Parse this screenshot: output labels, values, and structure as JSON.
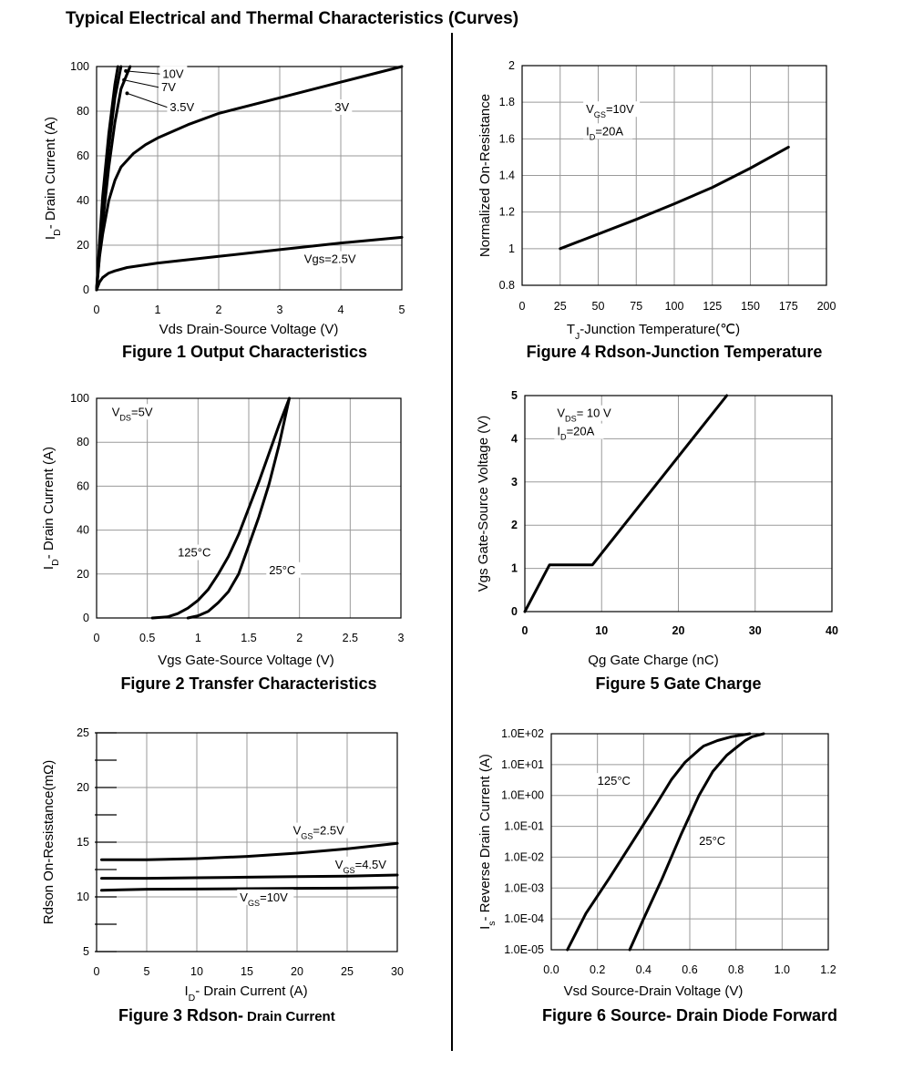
{
  "page": {
    "title": "Typical Electrical and Thermal Characteristics (Curves)"
  },
  "chart_data": [
    {
      "id": "fig1",
      "type": "line",
      "caption": "Figure 1 Output Characteristics",
      "xlabel": "Vds Drain-Source Voltage (V)",
      "ylabel": {
        "main": "I",
        "sub": "D",
        "rest": "- Drain Current (A)"
      },
      "xlim": [
        0,
        5
      ],
      "ylim": [
        0,
        100
      ],
      "xticks": [
        0,
        1,
        2,
        3,
        4,
        5
      ],
      "yticks": [
        0,
        20,
        40,
        60,
        80,
        100
      ],
      "xtick_labels": [
        "0",
        "1",
        "2",
        "3",
        "4",
        "5"
      ],
      "ytick_labels": [
        "0",
        "20",
        "40",
        "60",
        "80",
        "100"
      ],
      "grid": true,
      "series": [
        {
          "name": "10V",
          "x": [
            0,
            0.05,
            0.1,
            0.2,
            0.3,
            0.35
          ],
          "y": [
            0,
            22,
            42,
            70,
            92,
            100
          ]
        },
        {
          "name": "7V",
          "x": [
            0,
            0.05,
            0.1,
            0.2,
            0.3,
            0.4
          ],
          "y": [
            0,
            20,
            38,
            64,
            86,
            100
          ]
        },
        {
          "name": "3.5V",
          "x": [
            0,
            0.05,
            0.1,
            0.2,
            0.3,
            0.4,
            0.55
          ],
          "y": [
            0,
            16,
            30,
            55,
            75,
            90,
            100
          ]
        },
        {
          "name": "3V",
          "x": [
            0,
            0.05,
            0.1,
            0.2,
            0.3,
            0.4,
            0.6,
            0.8,
            1.0,
            1.5,
            2.0,
            3.0,
            4.0,
            5.0
          ],
          "y": [
            0,
            15,
            25,
            40,
            49,
            55,
            61,
            65,
            68,
            74,
            79,
            86,
            93,
            100
          ]
        },
        {
          "name": "Vgs=2.5V",
          "x": [
            0,
            0.05,
            0.1,
            0.2,
            0.3,
            0.5,
            1.0,
            2.0,
            3.0,
            4.0,
            5.0
          ],
          "y": [
            0,
            3.5,
            5.5,
            7.5,
            8.5,
            10,
            12,
            15,
            18,
            21,
            23.5
          ]
        }
      ],
      "annotations": [
        {
          "text": "10V",
          "x": 1.08,
          "y": 95,
          "arrow": [
            0.48,
            98
          ]
        },
        {
          "text": "7V",
          "x": 1.06,
          "y": 89,
          "arrow": [
            0.45,
            94
          ]
        },
        {
          "text": "3.5V",
          "x": 1.2,
          "y": 80,
          "arrow": [
            0.5,
            88
          ]
        },
        {
          "text": "3V",
          "x": 3.9,
          "y": 80
        },
        {
          "text": "Vgs=2.5V",
          "x": 3.4,
          "y": 12
        }
      ]
    },
    {
      "id": "fig2",
      "type": "line",
      "caption": "Figure 2 Transfer Characteristics",
      "xlabel": "Vgs Gate-Source Voltage (V)",
      "ylabel": {
        "main": "I",
        "sub": "D",
        "rest": "- Drain Current (A)"
      },
      "xlim": [
        0,
        3
      ],
      "ylim": [
        0,
        100
      ],
      "xticks": [
        0,
        0.5,
        1,
        1.5,
        2,
        2.5,
        3
      ],
      "yticks": [
        0,
        20,
        40,
        60,
        80,
        100
      ],
      "xtick_labels": [
        "0",
        "0.5",
        "1",
        "1.5",
        "2",
        "2.5",
        "3"
      ],
      "ytick_labels": [
        "0",
        "20",
        "40",
        "60",
        "80",
        "100"
      ],
      "grid": true,
      "series": [
        {
          "name": "125°C",
          "x": [
            0.55,
            0.7,
            0.8,
            0.9,
            1.0,
            1.1,
            1.2,
            1.3,
            1.4,
            1.5,
            1.6,
            1.7,
            1.8,
            1.9
          ],
          "y": [
            0,
            0.5,
            2,
            4.5,
            8,
            13,
            20,
            28,
            38,
            50,
            62,
            75,
            88,
            100
          ]
        },
        {
          "name": "25°C",
          "x": [
            0.9,
            1.0,
            1.1,
            1.2,
            1.3,
            1.4,
            1.5,
            1.6,
            1.7,
            1.8,
            1.9
          ],
          "y": [
            0,
            1,
            3,
            7,
            12,
            20,
            33,
            46,
            61,
            79,
            100
          ]
        }
      ],
      "annotations": [
        {
          "text": "V",
          "sub": "DS",
          "rest": "=5V",
          "x": 0.15,
          "y": 92
        },
        {
          "text": "125°C",
          "x": 0.8,
          "y": 28
        },
        {
          "text": "25°C",
          "x": 1.7,
          "y": 20
        }
      ]
    },
    {
      "id": "fig3",
      "type": "line",
      "caption": "Figure 3 Rdson-",
      "caption_tail": "Drain Current",
      "xlabel": {
        "main": "I",
        "sub": "D",
        "rest": "- Drain Current (A)"
      },
      "ylabel": "Rdson On-Resistance(mΩ)",
      "xlim": [
        0,
        30
      ],
      "ylim": [
        5,
        25
      ],
      "xticks": [
        0,
        5,
        10,
        15,
        20,
        25,
        30
      ],
      "yticks": [
        5,
        10,
        15,
        20,
        25
      ],
      "xtick_labels": [
        "0",
        "5",
        "10",
        "15",
        "20",
        "25",
        "30"
      ],
      "ytick_labels": [
        "5",
        "10",
        "15",
        "20",
        "25"
      ],
      "grid": true,
      "series": [
        {
          "name": "VGS=2.5V",
          "x": [
            0.5,
            5,
            10,
            15,
            20,
            25,
            30
          ],
          "y": [
            13.4,
            13.4,
            13.5,
            13.7,
            14.0,
            14.4,
            14.9
          ]
        },
        {
          "name": "VGS=4.5V",
          "x": [
            0.5,
            5,
            10,
            15,
            20,
            25,
            30
          ],
          "y": [
            11.7,
            11.7,
            11.75,
            11.8,
            11.85,
            11.9,
            12.0
          ]
        },
        {
          "name": "VGS=10V",
          "x": [
            0.5,
            5,
            10,
            15,
            20,
            25,
            30
          ],
          "y": [
            10.6,
            10.7,
            10.72,
            10.75,
            10.78,
            10.8,
            10.85
          ]
        }
      ],
      "annotations": [
        {
          "text": "V",
          "sub": "GS",
          "rest": "=2.5V",
          "x": 19.6,
          "y": 15.7
        },
        {
          "text": "V",
          "sub": "GS",
          "rest": "=4.5V",
          "x": 23.8,
          "y": 12.6
        },
        {
          "text": "V",
          "sub": "GS",
          "rest": "=10V",
          "x": 14.3,
          "y": 9.6
        }
      ]
    },
    {
      "id": "fig4",
      "type": "line",
      "caption": "Figure 4 Rdson-Junction Temperature",
      "xlabel": {
        "main": "T",
        "sub": "J",
        "rest": "-Junction Temperature(℃)"
      },
      "ylabel": "Normalized On-Resistance",
      "xlim": [
        0,
        200
      ],
      "ylim": [
        0.8,
        2
      ],
      "xticks": [
        0,
        25,
        50,
        75,
        100,
        125,
        150,
        175,
        200
      ],
      "yticks": [
        0.8,
        1,
        1.2,
        1.4,
        1.6,
        1.8,
        2
      ],
      "xtick_labels": [
        "0",
        "25",
        "50",
        "75",
        "100",
        "125",
        "150",
        "175",
        "200"
      ],
      "ytick_labels": [
        "0.8",
        "1",
        "1.2",
        "1.4",
        "1.6",
        "1.8",
        "2"
      ],
      "grid": true,
      "series": [
        {
          "name": "",
          "x": [
            25,
            50,
            75,
            100,
            125,
            150,
            175
          ],
          "y": [
            1.0,
            1.08,
            1.16,
            1.245,
            1.335,
            1.44,
            1.555
          ]
        }
      ],
      "annotations": [
        {
          "text": "V",
          "sub": "GS",
          "rest": "=10V",
          "x": 42,
          "y": 1.74
        },
        {
          "text": "I",
          "sub": "D",
          "rest": "=20A",
          "x": 42,
          "y": 1.62
        }
      ]
    },
    {
      "id": "fig5",
      "type": "line",
      "caption": "Figure 5 Gate Charge",
      "xlabel": "Qg Gate Charge (nC)",
      "ylabel": "Vgs Gate-Source Voltage (V)",
      "xlim": [
        0,
        40
      ],
      "ylim": [
        0,
        5
      ],
      "xticks": [
        0,
        10,
        20,
        30,
        40
      ],
      "yticks": [
        0,
        1,
        2,
        3,
        4,
        5
      ],
      "xtick_labels": [
        "0",
        "10",
        "20",
        "30",
        "40"
      ],
      "ytick_labels": [
        "0",
        "1",
        "2",
        "3",
        "4",
        "5"
      ],
      "grid": true,
      "series": [
        {
          "name": "",
          "x": [
            0,
            3.2,
            8.8,
            26.3
          ],
          "y": [
            0,
            1.08,
            1.08,
            5
          ]
        }
      ],
      "annotations": [
        {
          "text": "V",
          "sub": "DS",
          "rest": "= 10 V",
          "x": 4.2,
          "y": 4.5
        },
        {
          "text": "I",
          "sub": "D",
          "rest": "=20A",
          "x": 4.2,
          "y": 4.08
        }
      ]
    },
    {
      "id": "fig6",
      "type": "line",
      "yscale": "log",
      "caption": "Figure 6 Source- Drain Diode Forward",
      "xlabel": "Vsd Source-Drain Voltage (V)",
      "ylabel": {
        "main": "I",
        "sub": "s",
        "rest": "- Reverse Drain Current (A)"
      },
      "xlim": [
        0,
        1.2
      ],
      "ylim": [
        1e-05,
        100
      ],
      "xticks": [
        0,
        0.2,
        0.4,
        0.6,
        0.8,
        1.0,
        1.2
      ],
      "yticks": [
        1e-05,
        0.0001,
        0.001,
        0.01,
        0.1,
        1,
        10,
        100
      ],
      "xtick_labels": [
        "0.0",
        "0.2",
        "0.4",
        "0.6",
        "0.8",
        "1.0",
        "1.2"
      ],
      "ytick_labels": [
        "1.0E-05",
        "1.0E-04",
        "1.0E-03",
        "1.0E-02",
        "1.0E-01",
        "1.0E+00",
        "1.0E+01",
        "1.0E+02"
      ],
      "grid": true,
      "series": [
        {
          "name": "125°C",
          "x": [
            0.07,
            0.15,
            0.25,
            0.35,
            0.45,
            0.52,
            0.58,
            0.64,
            0.66,
            0.72,
            0.78,
            0.86
          ],
          "y": [
            1e-05,
            0.00015,
            0.002,
            0.03,
            0.45,
            3.2,
            12,
            30,
            40,
            60,
            80,
            100
          ]
        },
        {
          "name": "25°C",
          "x": [
            0.34,
            0.4,
            0.48,
            0.56,
            0.64,
            0.7,
            0.76,
            0.8,
            0.84,
            0.87,
            0.92
          ],
          "y": [
            1e-05,
            0.0001,
            0.002,
            0.05,
            1.0,
            6,
            20,
            35,
            60,
            80,
            100
          ]
        }
      ],
      "annotations": [
        {
          "text": "125°C",
          "x": 0.2,
          "y": 2.2
        },
        {
          "text": "25°C",
          "x": 0.64,
          "y": 0.025
        }
      ]
    }
  ]
}
